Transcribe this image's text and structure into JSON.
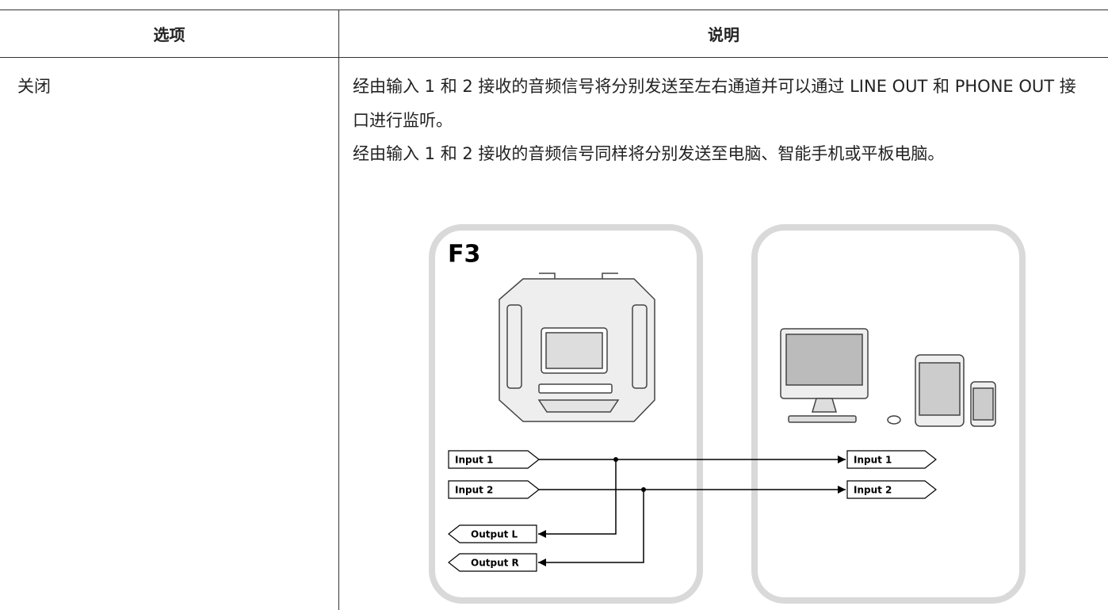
{
  "table": {
    "header": [
      "选项",
      "说明"
    ],
    "rows": [
      [
        "关闭",
        [
          "经由输入 1 和 2 接收的音频信号将分别发送至左右通道并可以通过 LINE OUT 和 PHONE OUT 接口进行监听。",
          "经由输入 1 和 2 接收的音频信号同样将分别发送至电脑、智能手机或平板电脑。"
        ]
      ]
    ]
  },
  "diagram": {
    "device_label": "F3",
    "inputs": [
      "Input 1",
      "Input 2"
    ],
    "outputs": [
      "Output L",
      "Output R"
    ],
    "computer_inputs": [
      "Input 1",
      "Input 2"
    ]
  }
}
